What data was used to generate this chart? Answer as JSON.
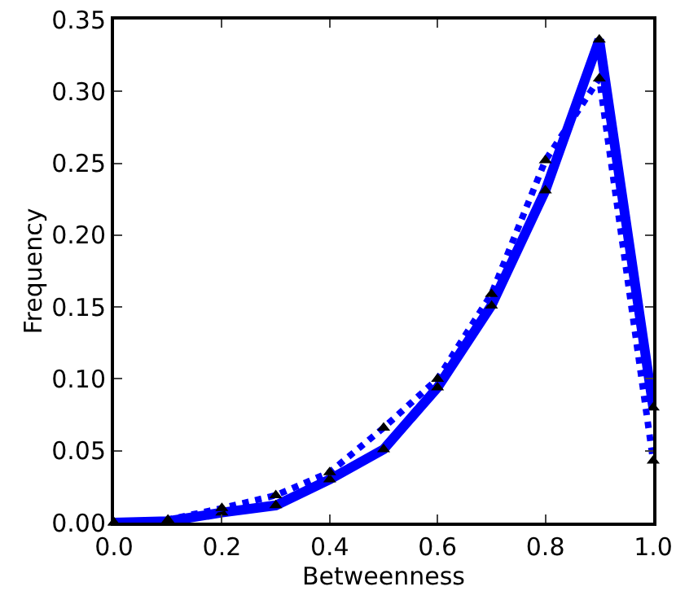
{
  "chart_data": {
    "type": "line",
    "xlabel": "Betweenness",
    "ylabel": "Frequency",
    "x": [
      0,
      0.1,
      0.2,
      0.3,
      0.4,
      0.5,
      0.6,
      0.7,
      0.8,
      0.9,
      1.0
    ],
    "series": [
      {
        "color": "#0000ff",
        "line_style": "solid",
        "values": [
          0,
          0.001,
          0.007,
          0.012,
          0.03,
          0.051,
          0.094,
          0.151,
          0.231,
          0.336,
          0.08
        ]
      },
      {
        "color": "#0000ff",
        "line_style": "dotted",
        "values": [
          0,
          0.002,
          0.01,
          0.019,
          0.035,
          0.066,
          0.1,
          0.159,
          0.252,
          0.309,
          0.043
        ]
      }
    ],
    "marker": "triangle",
    "grid": false,
    "legend": false,
    "xlim": [
      0,
      1
    ],
    "xticks": [
      {
        "value": 0,
        "label": "0.0"
      },
      {
        "value": 0.2,
        "label": "0.2"
      },
      {
        "value": 0.4,
        "label": "0.4"
      },
      {
        "value": 0.6,
        "label": "0.6"
      },
      {
        "value": 0.8,
        "label": "0.8"
      },
      {
        "value": 1,
        "label": "1.0"
      }
    ],
    "ylim": [
      0,
      0.35
    ],
    "yticks": [
      {
        "value": 0,
        "label": "0.00"
      },
      {
        "value": 0.05,
        "label": "0.05"
      },
      {
        "value": 0.1,
        "label": "0.10"
      },
      {
        "value": 0.15,
        "label": "0.15"
      },
      {
        "value": 0.2,
        "label": "0.20"
      },
      {
        "value": 0.25,
        "label": "0.25"
      },
      {
        "value": 0.3,
        "label": "0.30"
      },
      {
        "value": 0.35,
        "label": "0.35"
      }
    ]
  }
}
